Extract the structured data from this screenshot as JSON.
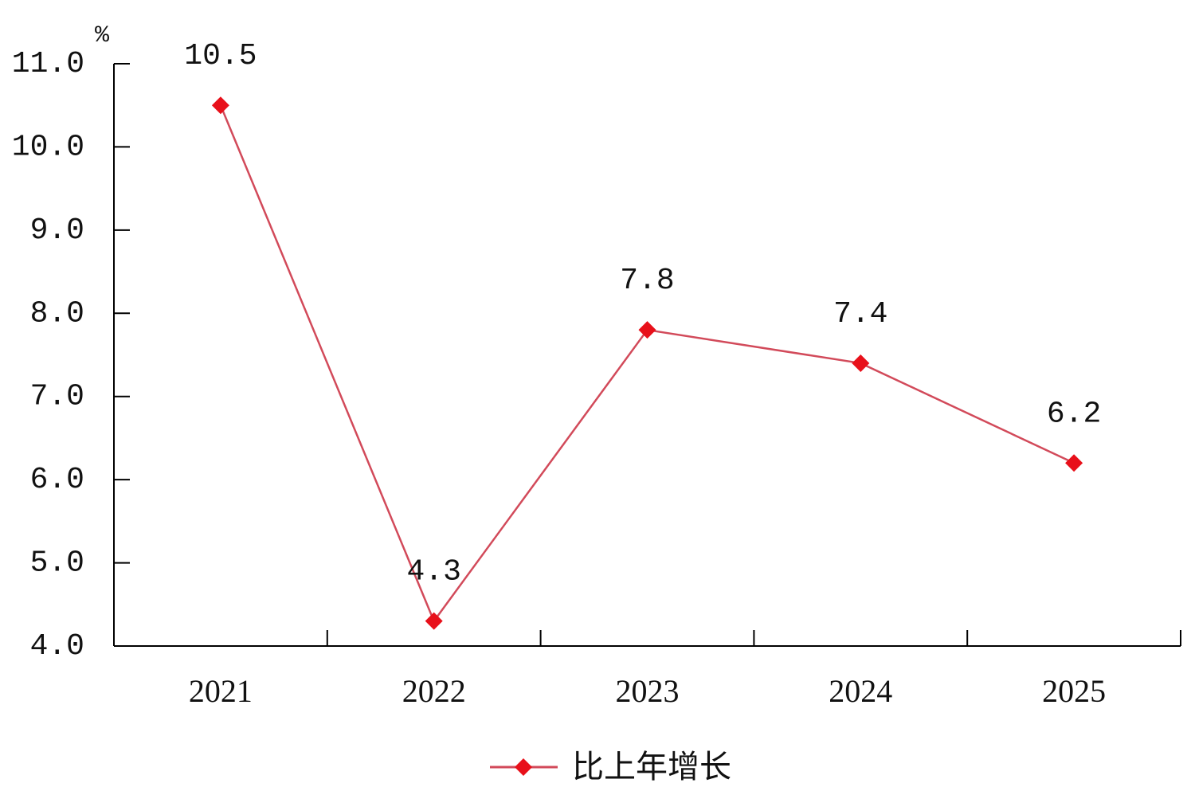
{
  "chart_data": {
    "type": "line",
    "y_label": "%",
    "categories": [
      "2021",
      "2022",
      "2023",
      "2024",
      "2025"
    ],
    "series": [
      {
        "name": "比上年增长",
        "color": "#e8101a",
        "line_color": "#d24a5a",
        "values": [
          10.5,
          4.3,
          7.8,
          7.4,
          6.2
        ]
      }
    ],
    "ylim": [
      4,
      11
    ],
    "yticks": [
      {
        "value": 4,
        "label": "4.0"
      },
      {
        "value": 5,
        "label": "5.0"
      },
      {
        "value": 6,
        "label": "6.0"
      },
      {
        "value": 7,
        "label": "7.0"
      },
      {
        "value": 8,
        "label": "8.0"
      },
      {
        "value": 9,
        "label": "9.0"
      },
      {
        "value": 10,
        "label": "10.0"
      },
      {
        "value": 11,
        "label": "11.0"
      }
    ],
    "legend": "bottom"
  }
}
